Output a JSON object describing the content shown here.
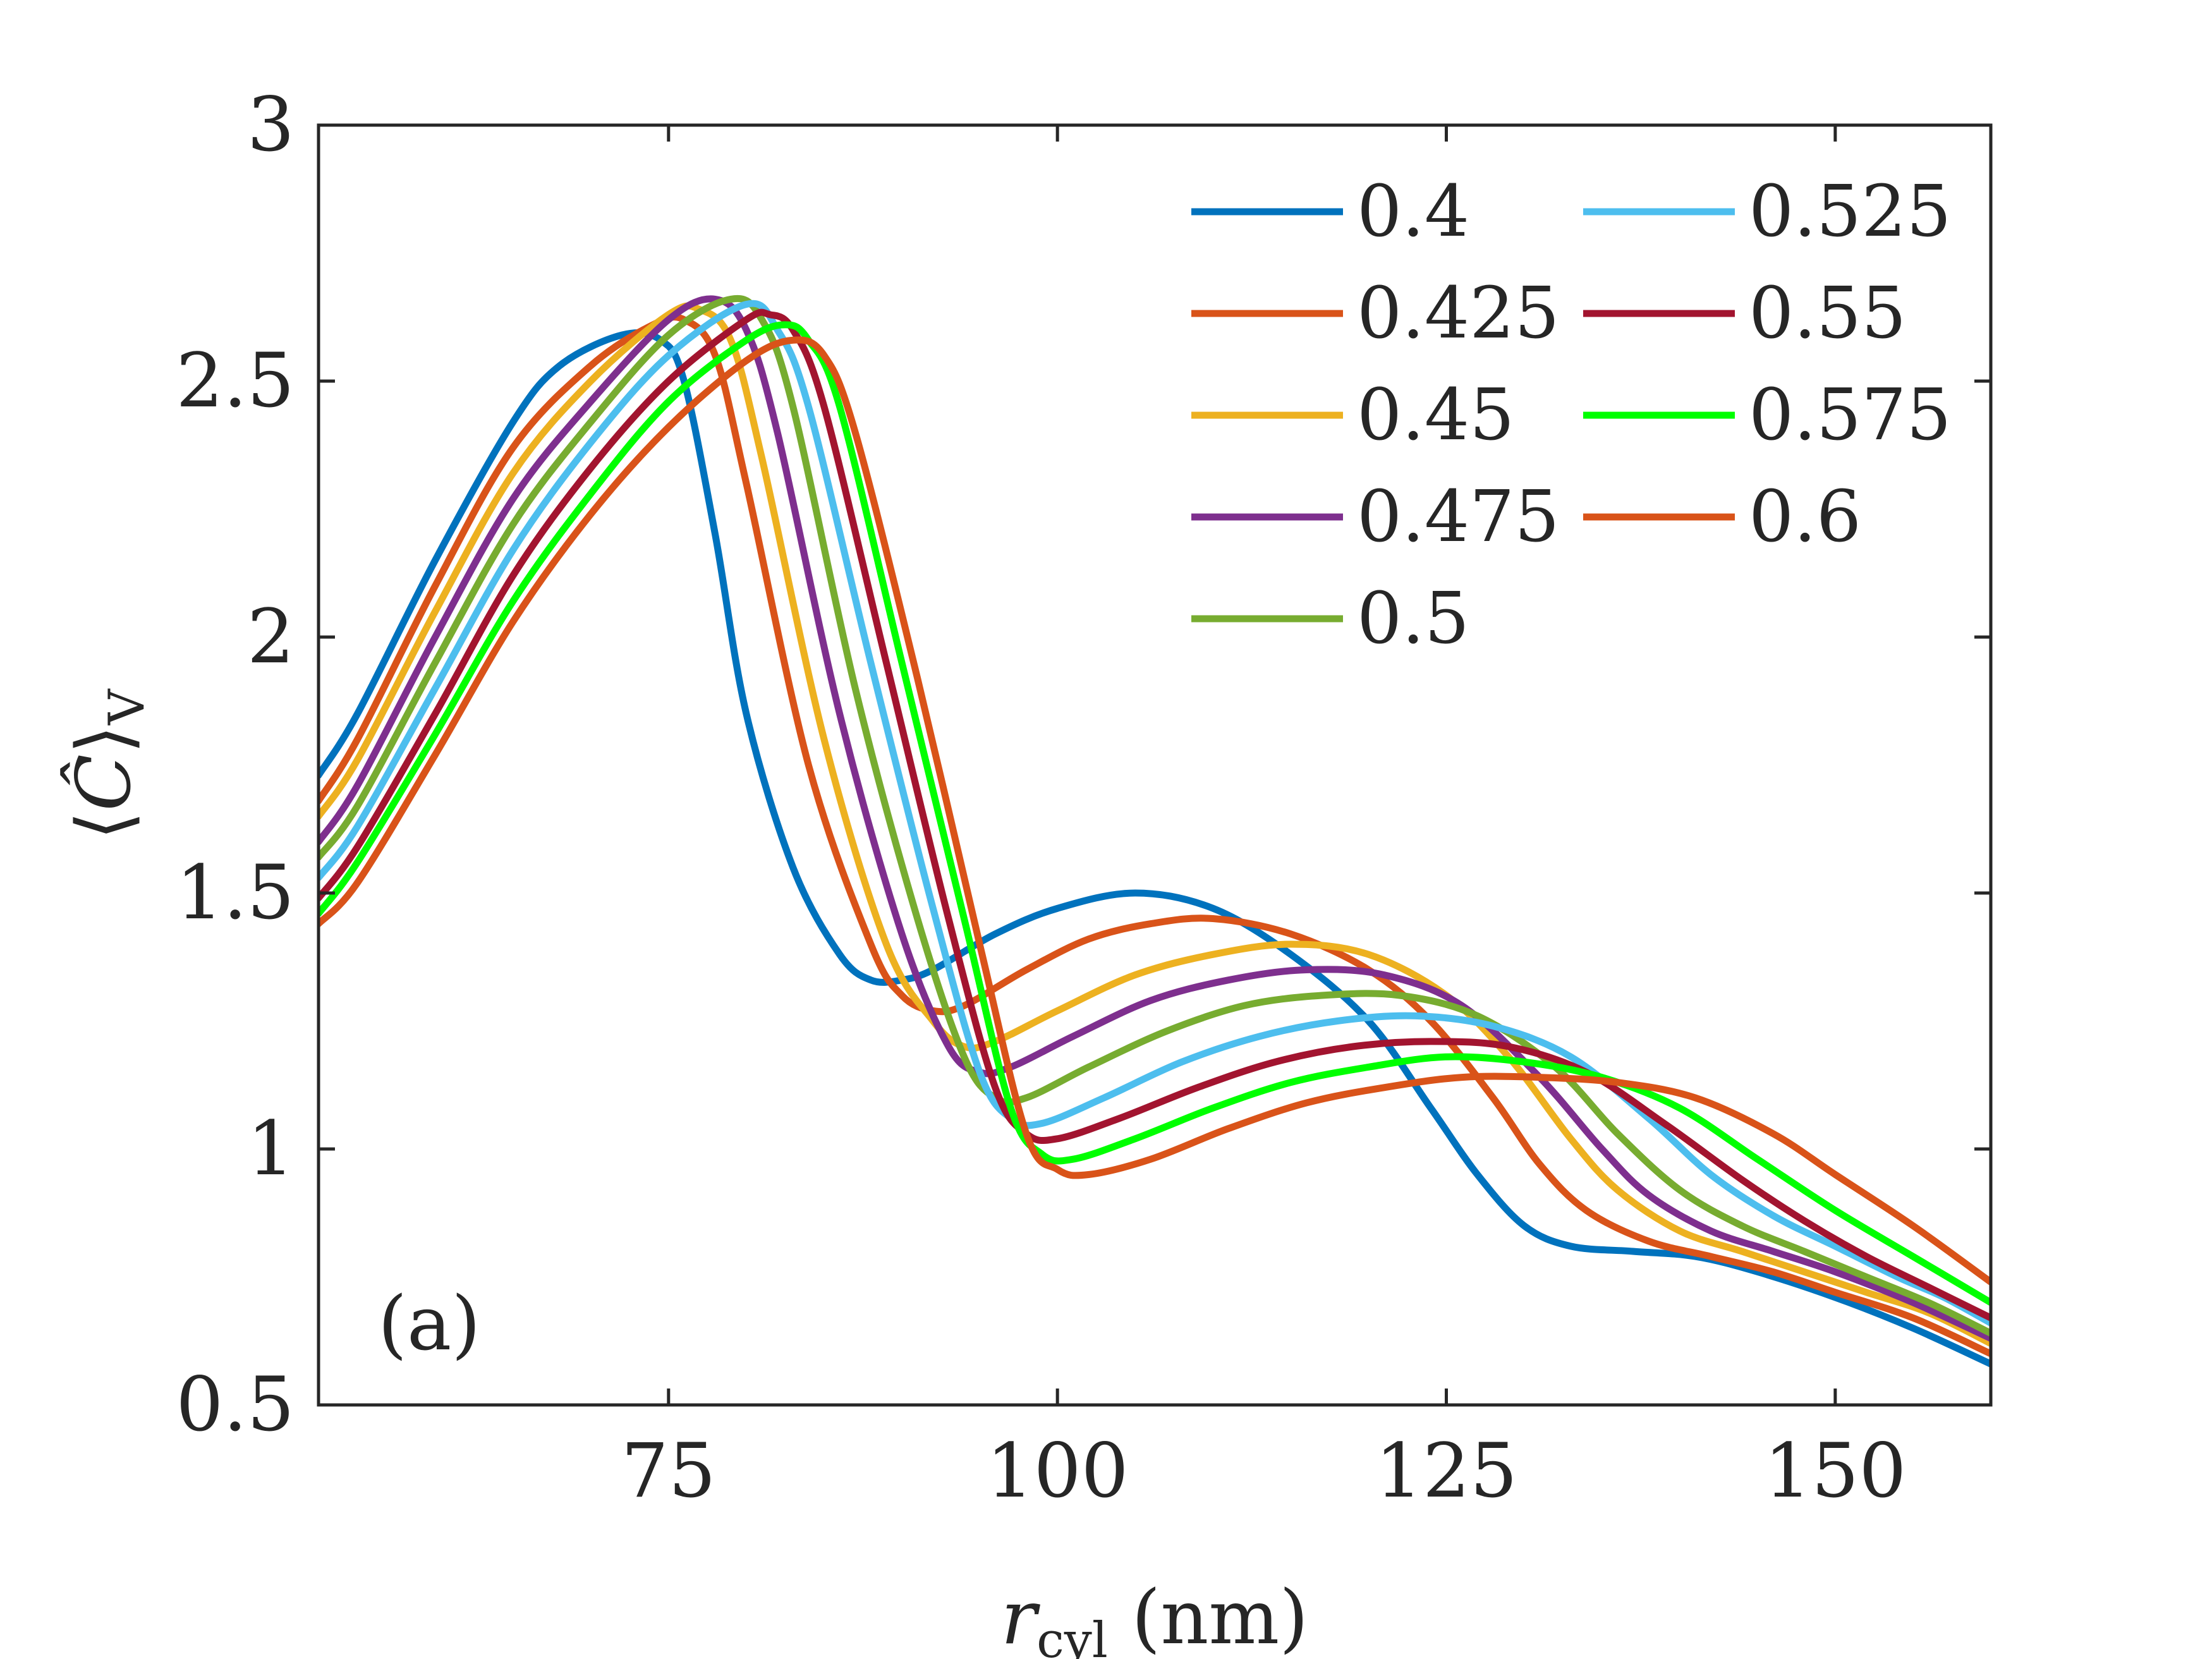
{
  "chart_data": {
    "type": "line",
    "title": "",
    "panel_label": "(a)",
    "xlabel": {
      "symbol": "r",
      "subscript": "cyl",
      "unit": " (nm)"
    },
    "ylabel": {
      "symbol": "Ĉ",
      "subscript": "V"
    },
    "xlim": [
      52.5,
      160
    ],
    "ylim": [
      0.5,
      3
    ],
    "xticks": [
      75,
      100,
      125,
      150
    ],
    "xtick_labels": [
      "75",
      "100",
      "125",
      "150"
    ],
    "yticks": [
      0.5,
      1,
      1.5,
      2,
      2.5,
      3
    ],
    "ytick_labels": [
      "0.5",
      "1",
      "1.5",
      "2",
      "2.5",
      "3"
    ],
    "grid": false,
    "legend_position": "top-right",
    "legend_columns": 2,
    "series": [
      {
        "name": "0.4",
        "color": "#0072BD",
        "x": [
          52.5,
          55,
          60,
          65,
          68,
          72,
          74.5,
          76,
          78,
          80,
          83,
          86,
          88,
          90,
          92,
          96,
          100,
          105,
          110,
          115,
          120,
          124,
          127,
          130,
          133,
          137,
          141,
          145,
          150,
          155,
          160
        ],
        "y": [
          1.73,
          1.85,
          2.15,
          2.42,
          2.53,
          2.59,
          2.58,
          2.5,
          2.2,
          1.85,
          1.55,
          1.38,
          1.33,
          1.33,
          1.35,
          1.42,
          1.47,
          1.5,
          1.47,
          1.38,
          1.25,
          1.08,
          0.95,
          0.85,
          0.81,
          0.8,
          0.79,
          0.76,
          0.71,
          0.65,
          0.58
        ]
      },
      {
        "name": "0.425",
        "color": "#D95319",
        "x": [
          52.5,
          55,
          60,
          65,
          70,
          74,
          76,
          78,
          80,
          84,
          88,
          90,
          92,
          94,
          98,
          102,
          106,
          110,
          115,
          120,
          124,
          128,
          131,
          134,
          138,
          142,
          146,
          150,
          155,
          160
        ],
        "y": [
          1.68,
          1.8,
          2.1,
          2.37,
          2.53,
          2.61,
          2.62,
          2.55,
          2.3,
          1.75,
          1.4,
          1.3,
          1.27,
          1.28,
          1.35,
          1.41,
          1.44,
          1.45,
          1.42,
          1.35,
          1.25,
          1.1,
          0.97,
          0.88,
          0.82,
          0.79,
          0.76,
          0.72,
          0.67,
          0.6
        ]
      },
      {
        "name": "0.45",
        "color": "#EDB120",
        "x": [
          52.5,
          55,
          60,
          65,
          70,
          75,
          77,
          79,
          81,
          85,
          89,
          92,
          94,
          96,
          100,
          105,
          110,
          115,
          120,
          125,
          129,
          133,
          136,
          140,
          144,
          148,
          152,
          156,
          160
        ],
        "y": [
          1.65,
          1.76,
          2.05,
          2.32,
          2.5,
          2.63,
          2.64,
          2.58,
          2.35,
          1.8,
          1.4,
          1.25,
          1.2,
          1.21,
          1.27,
          1.34,
          1.38,
          1.4,
          1.38,
          1.3,
          1.18,
          1.02,
          0.92,
          0.84,
          0.8,
          0.76,
          0.72,
          0.68,
          0.62
        ]
      },
      {
        "name": "0.475",
        "color": "#7E2F8E",
        "x": [
          52.5,
          55,
          60,
          65,
          70,
          75,
          78,
          80,
          82,
          86,
          90,
          93,
          95,
          97,
          101,
          106,
          111,
          116,
          121,
          126,
          131,
          135,
          138,
          142,
          146,
          150,
          155,
          160
        ],
        "y": [
          1.6,
          1.71,
          2.0,
          2.27,
          2.46,
          2.62,
          2.66,
          2.6,
          2.4,
          1.85,
          1.42,
          1.2,
          1.15,
          1.16,
          1.22,
          1.29,
          1.33,
          1.35,
          1.34,
          1.28,
          1.14,
          1.0,
          0.91,
          0.84,
          0.8,
          0.76,
          0.7,
          0.63
        ]
      },
      {
        "name": "0.5",
        "color": "#77AC30",
        "x": [
          52.5,
          55,
          60,
          65,
          70,
          75,
          79,
          81,
          83,
          87,
          91,
          94,
          96,
          98,
          102,
          107,
          112,
          117,
          122,
          127,
          132,
          136,
          140,
          144,
          148,
          152,
          156,
          160
        ],
        "y": [
          1.57,
          1.67,
          1.95,
          2.22,
          2.42,
          2.59,
          2.66,
          2.62,
          2.45,
          1.9,
          1.45,
          1.18,
          1.1,
          1.1,
          1.16,
          1.23,
          1.28,
          1.3,
          1.3,
          1.26,
          1.16,
          1.03,
          0.92,
          0.85,
          0.8,
          0.75,
          0.7,
          0.64
        ]
      },
      {
        "name": "0.525",
        "color": "#4DBEEE",
        "x": [
          52.5,
          55,
          60,
          65,
          70,
          75,
          80,
          82,
          84,
          88,
          92,
          95,
          97,
          99,
          103,
          108,
          113,
          118,
          123,
          128,
          133,
          138,
          142,
          146,
          150,
          154,
          157,
          160
        ],
        "y": [
          1.53,
          1.63,
          1.9,
          2.17,
          2.38,
          2.55,
          2.65,
          2.6,
          2.45,
          1.95,
          1.47,
          1.15,
          1.06,
          1.05,
          1.1,
          1.17,
          1.22,
          1.25,
          1.26,
          1.24,
          1.18,
          1.06,
          0.95,
          0.87,
          0.81,
          0.75,
          0.71,
          0.66
        ]
      },
      {
        "name": "0.55",
        "color": "#A2142F",
        "x": [
          52.5,
          55,
          60,
          65,
          70,
          75,
          80,
          81.5,
          83,
          85,
          89,
          93,
          96,
          98,
          100,
          104,
          109,
          114,
          119,
          124,
          129,
          134,
          139,
          144,
          148,
          152,
          156,
          160
        ],
        "y": [
          1.49,
          1.59,
          1.85,
          2.12,
          2.33,
          2.5,
          2.62,
          2.63,
          2.6,
          2.45,
          1.95,
          1.45,
          1.12,
          1.03,
          1.02,
          1.06,
          1.12,
          1.17,
          1.2,
          1.21,
          1.2,
          1.15,
          1.05,
          0.94,
          0.86,
          0.79,
          0.73,
          0.67
        ]
      },
      {
        "name": "0.575",
        "color": "#00FF00",
        "x": [
          52.5,
          55,
          60,
          65,
          70,
          75,
          80,
          82.5,
          84,
          86,
          90,
          94,
          97,
          99,
          101,
          105,
          110,
          115,
          120,
          125,
          130,
          135,
          140,
          145,
          150,
          155,
          160
        ],
        "y": [
          1.46,
          1.56,
          1.81,
          2.07,
          2.28,
          2.46,
          2.58,
          2.61,
          2.58,
          2.45,
          1.95,
          1.45,
          1.08,
          0.99,
          0.98,
          1.02,
          1.08,
          1.13,
          1.16,
          1.18,
          1.17,
          1.14,
          1.08,
          0.98,
          0.88,
          0.79,
          0.7
        ]
      },
      {
        "name": "0.6",
        "color": "#D95319",
        "x": [
          52.5,
          55,
          60,
          65,
          70,
          75,
          80,
          83,
          85,
          87,
          91,
          95,
          98,
          100,
          102,
          106,
          111,
          116,
          121,
          126,
          131,
          136,
          141,
          146,
          150,
          155,
          160
        ],
        "y": [
          1.44,
          1.52,
          1.77,
          2.03,
          2.24,
          2.41,
          2.54,
          2.58,
          2.55,
          2.4,
          1.92,
          1.4,
          1.03,
          0.96,
          0.95,
          0.98,
          1.04,
          1.09,
          1.12,
          1.14,
          1.14,
          1.13,
          1.1,
          1.03,
          0.95,
          0.85,
          0.74
        ]
      }
    ]
  }
}
